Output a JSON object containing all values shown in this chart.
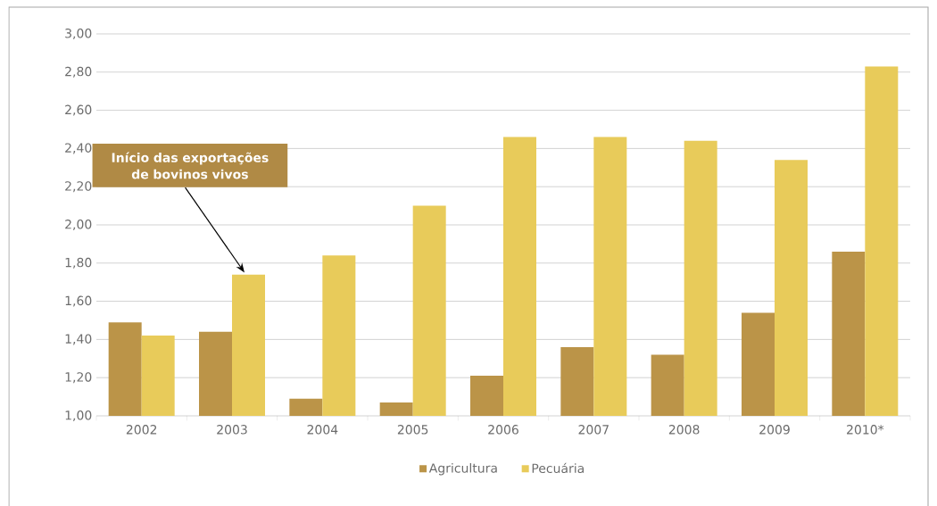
{
  "chart_data": {
    "type": "bar",
    "categories": [
      "2002",
      "2003",
      "2004",
      "2005",
      "2006",
      "2007",
      "2008",
      "2009",
      "2010*"
    ],
    "series": [
      {
        "name": "Agricultura",
        "color": "#bb9448",
        "values": [
          1.49,
          1.44,
          1.09,
          1.07,
          1.21,
          1.36,
          1.32,
          1.54,
          1.86
        ]
      },
      {
        "name": "Pecuária",
        "color": "#e8cb5a",
        "values": [
          1.42,
          1.74,
          1.84,
          2.1,
          2.46,
          2.46,
          2.44,
          2.34,
          2.83
        ]
      }
    ],
    "ylim": [
      1,
      3
    ],
    "yticks": [
      {
        "value": 1,
        "label": "1,00"
      },
      {
        "value": 1.2,
        "label": "1,20"
      },
      {
        "value": 1.4,
        "label": "1,40"
      },
      {
        "value": 1.6,
        "label": "1,60"
      },
      {
        "value": 1.8,
        "label": "1,80"
      },
      {
        "value": 2,
        "label": "2,00"
      },
      {
        "value": 2.2,
        "label": "2,20"
      },
      {
        "value": 2.4,
        "label": "2,40"
      },
      {
        "value": 2.6,
        "label": "2,60"
      },
      {
        "value": 2.8,
        "label": "2,80"
      },
      {
        "value": 3,
        "label": "3,00"
      }
    ],
    "grid": "y",
    "legend": "bottom",
    "annotations": [
      "Início das exportações de bovinos vivos"
    ]
  }
}
